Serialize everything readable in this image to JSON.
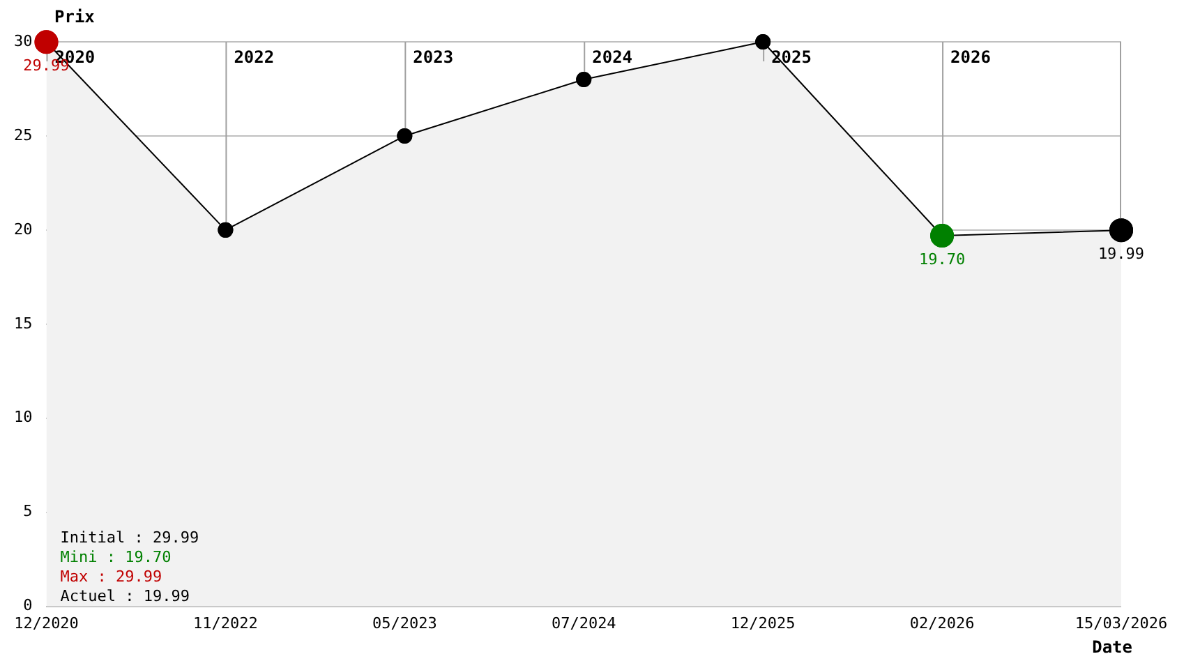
{
  "chart_data": {
    "type": "area",
    "ylabel": "Prix",
    "xlabel": "Date",
    "categories": [
      "12/2020",
      "11/2022",
      "05/2023",
      "07/2024",
      "12/2025",
      "02/2026",
      "15/03/2026"
    ],
    "series": [
      {
        "color": "#000000",
        "colors": [
          "#c00000",
          "#000000",
          "#000000",
          "#000000",
          "#000000",
          "#008000",
          "#000000"
        ],
        "values": [
          29.99,
          20,
          25,
          28,
          30,
          19.7,
          19.99
        ],
        "value_labels": [
          "29.99",
          null,
          null,
          null,
          null,
          "19.70",
          "19.99"
        ]
      }
    ],
    "ylim": [
      0,
      30
    ],
    "yticks": [
      0,
      5,
      10,
      15,
      20,
      25,
      30
    ],
    "grid": "y",
    "legend": false,
    "marker": "circle",
    "ref_lines": [
      {
        "axis": "x",
        "value": "12/2020",
        "label": "2020"
      },
      {
        "axis": "x",
        "value": "11/2022",
        "label": "2022"
      },
      {
        "axis": "x",
        "value": "05/2023",
        "label": "2023"
      },
      {
        "axis": "x",
        "value": "07/2024",
        "label": "2024"
      },
      {
        "axis": "x",
        "value": "12/2025",
        "label": "2025"
      },
      {
        "axis": "x",
        "value": "02/2026",
        "label": "2026"
      },
      {
        "axis": "x",
        "value": "15/03/2026",
        "label": null
      }
    ],
    "annotations": [
      "Initial : 29.99",
      "Mini : 19.70",
      "Max : 29.99",
      "Actuel : 19.99"
    ]
  }
}
